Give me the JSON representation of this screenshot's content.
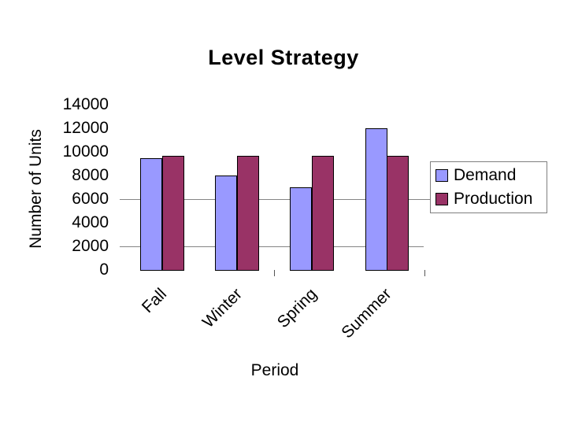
{
  "chart_data": {
    "type": "bar",
    "title": "Level Strategy",
    "xlabel": "Period",
    "ylabel": "Number of Units",
    "categories": [
      "Fall",
      "Winter",
      "Spring",
      "Summer"
    ],
    "series": [
      {
        "name": "Demand",
        "color": "#9999FF",
        "values": [
          9500,
          8000,
          7000,
          12000
        ]
      },
      {
        "name": "Production",
        "color": "#993366",
        "values": [
          9700,
          9700,
          9700,
          9700
        ]
      }
    ],
    "ylim": [
      0,
      14000
    ],
    "yticks": [
      0,
      2000,
      4000,
      6000,
      8000,
      10000,
      12000,
      14000
    ],
    "gridlines_at": [
      2000,
      6000
    ],
    "legend_position": "right",
    "legend_entries": [
      "Demand",
      "Production"
    ],
    "bar_border_color": "#000000",
    "gridline_color": "#848484",
    "background_color": "#FFFFFF",
    "text_color": "#000000"
  }
}
